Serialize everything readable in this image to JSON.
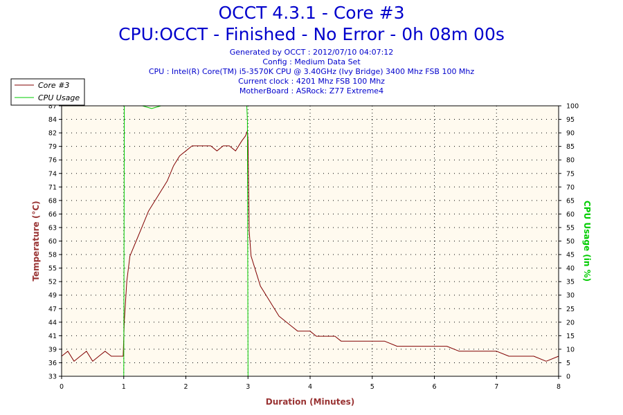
{
  "header": {
    "title": "OCCT 4.3.1 - Core #3",
    "subtitle": "CPU:OCCT - Finished - No Error - 0h 08m 00s",
    "meta": [
      "Generated by OCCT : 2012/07/10 04:07:12",
      "Config : Medium Data Set",
      "CPU : Intel(R) Core(TM) i5-3570K CPU @ 3.40GHz (Ivy Bridge) 3400 Mhz FSB 100 Mhz",
      "Current clock : 4201 Mhz FSB 100 Mhz",
      "MotherBoard : ASRock: Z77 Extreme4"
    ]
  },
  "colors": {
    "temperature": "#800000",
    "usage": "#00cc00",
    "plot_bg": "#fffaef",
    "axis_label": "#993333",
    "usage_label": "#00cc00"
  },
  "chart_data": {
    "type": "line",
    "xlabel": "Duration (Minutes)",
    "ylabel": "Temperature (°C)",
    "y2label": "CPU Usage (in %)",
    "xlim": [
      0,
      8
    ],
    "ylim": [
      33,
      87
    ],
    "y2lim": [
      0,
      100
    ],
    "x_ticks": [
      0,
      1,
      2,
      3,
      4,
      5,
      6,
      7,
      8
    ],
    "y_ticks": [
      33,
      36,
      39,
      41,
      44,
      47,
      49,
      52,
      55,
      58,
      60,
      63,
      66,
      68,
      71,
      74,
      76,
      79,
      82,
      84,
      87
    ],
    "y2_ticks": [
      0,
      5,
      10,
      15,
      20,
      25,
      30,
      35,
      40,
      45,
      50,
      55,
      60,
      65,
      70,
      75,
      80,
      85,
      90,
      95,
      100
    ],
    "grid": true,
    "legend_position": "top-left",
    "series": [
      {
        "name": "Core #3",
        "axis": "left",
        "x": [
          0,
          0.1,
          0.2,
          0.3,
          0.4,
          0.5,
          0.6,
          0.7,
          0.8,
          0.9,
          0.99,
          1.01,
          1.05,
          1.1,
          1.2,
          1.3,
          1.4,
          1.5,
          1.6,
          1.7,
          1.8,
          1.9,
          2.0,
          2.1,
          2.2,
          2.3,
          2.4,
          2.5,
          2.6,
          2.7,
          2.8,
          2.9,
          2.96,
          2.99,
          3.0,
          3.02,
          3.05,
          3.1,
          3.2,
          3.3,
          3.4,
          3.5,
          3.6,
          3.7,
          3.8,
          3.9,
          4.0,
          4.1,
          4.2,
          4.3,
          4.4,
          4.5,
          4.6,
          4.7,
          4.8,
          4.9,
          5.0,
          5.2,
          5.4,
          5.6,
          5.8,
          6.0,
          6.2,
          6.4,
          6.6,
          6.8,
          7.0,
          7.2,
          7.4,
          7.6,
          7.8,
          8.0
        ],
        "y": [
          37,
          38,
          36,
          37,
          38,
          36,
          37,
          38,
          37,
          37,
          37,
          44,
          52,
          57,
          60,
          63,
          66,
          68,
          70,
          72,
          75,
          77,
          78,
          79,
          79,
          79,
          79,
          78,
          79,
          79,
          78,
          80,
          81,
          82,
          80,
          62,
          57,
          55,
          51,
          49,
          47,
          45,
          44,
          43,
          42,
          42,
          42,
          41,
          41,
          41,
          41,
          40,
          40,
          40,
          40,
          40,
          40,
          40,
          39,
          39,
          39,
          39,
          39,
          38,
          38,
          38,
          38,
          37,
          37,
          37,
          36,
          37
        ]
      },
      {
        "name": "CPU Usage",
        "axis": "right",
        "x": [
          0,
          1.0,
          1.01,
          1.1,
          1.3,
          1.45,
          1.6,
          1.8,
          2.0,
          2.5,
          2.98,
          2.99,
          3.0,
          4.0,
          5.0,
          6.0,
          7.0,
          8.0
        ],
        "y": [
          0,
          0,
          100,
          100,
          100,
          99,
          100,
          100,
          100,
          100,
          100,
          95,
          0,
          0,
          0,
          0,
          0,
          0
        ]
      }
    ]
  }
}
